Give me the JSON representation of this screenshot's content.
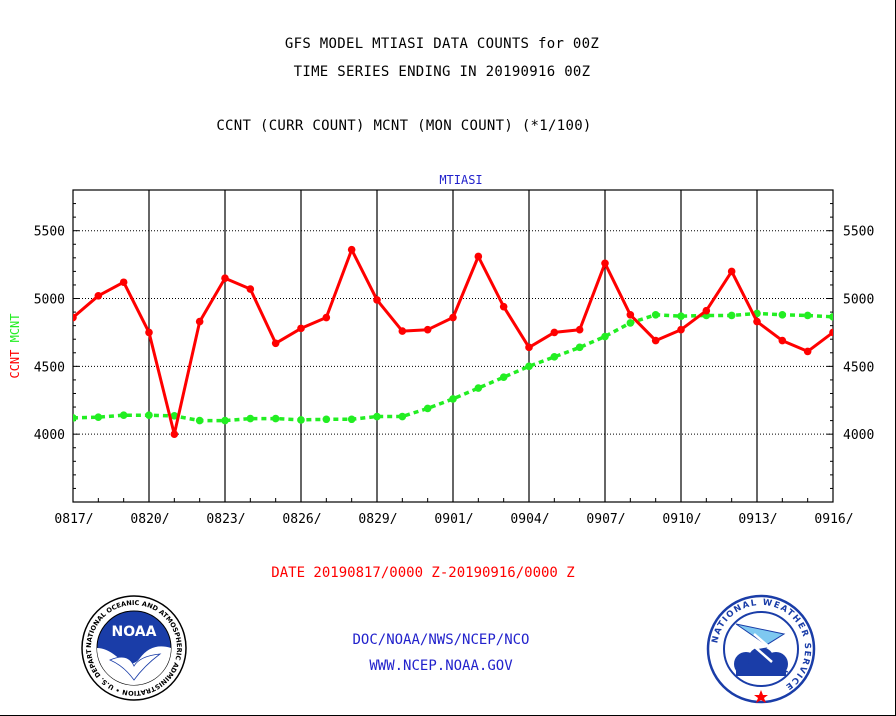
{
  "header": {
    "title_line1": "GFS MODEL MTIASI DATA COUNTS for 00Z",
    "title_line2": "TIME SERIES ENDING IN 20190916 00Z",
    "title_line3": "CCNT (CURR COUNT) MCNT (MON COUNT) (*1/100)"
  },
  "footer": {
    "date_range": "DATE 20190817/0000 Z-20190916/0000 Z",
    "org": "DOC/NOAA/NWS/NCEP/NCO",
    "url": "WWW.NCEP.NOAA.GOV"
  },
  "logos": {
    "noaa_text": "NOAA",
    "noaa_ring": "NATIONAL OCEANIC AND ATMOSPHERIC ADMINISTRATION • U.S. DEPARTMENT OF COMMERCE •",
    "nws_ring": "NATIONAL WEATHER SERVICE"
  },
  "colors": {
    "ccnt": "#ff0000",
    "mcnt": "#22ee22",
    "frame": "#000000",
    "subtitle": "#2222cc"
  },
  "chart_data": {
    "type": "line",
    "title": "MTIASI",
    "ylabel_ccnt": "CCNT",
    "ylabel_mcnt": "MCNT",
    "xlabel": "",
    "ylim": [
      3500,
      5800
    ],
    "yticks": [
      4000,
      4500,
      5000,
      5500
    ],
    "x_days": 30,
    "x_tick_labels": [
      "0817/",
      "0820/",
      "0823/",
      "0826/",
      "0829/",
      "0901/",
      "0904/",
      "0907/",
      "0910/",
      "0913/",
      "0916/"
    ],
    "series": [
      {
        "name": "CCNT",
        "color": "#ff0000",
        "values": [
          4860,
          5020,
          5120,
          4750,
          4000,
          4830,
          5150,
          5070,
          4670,
          4780,
          4860,
          5360,
          4990,
          4760,
          4770,
          4860,
          5310,
          4940,
          4640,
          4750,
          4770,
          5260,
          4880,
          4690,
          4770,
          4910,
          5200,
          4830,
          4690,
          4610,
          4750
        ]
      },
      {
        "name": "MCNT",
        "color": "#22ee22",
        "values": [
          4120,
          4125,
          4140,
          4140,
          4135,
          4100,
          4100,
          4115,
          4115,
          4105,
          4110,
          4110,
          4130,
          4130,
          4190,
          4260,
          4340,
          4420,
          4500,
          4570,
          4640,
          4720,
          4820,
          4880,
          4870,
          4875,
          4875,
          4890,
          4880,
          4875,
          4865
        ]
      }
    ]
  }
}
